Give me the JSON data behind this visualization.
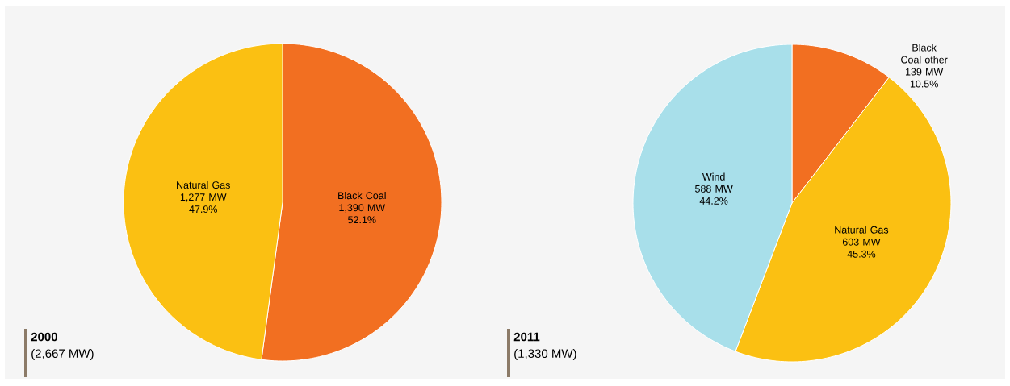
{
  "chart_data": [
    {
      "type": "pie",
      "title": "2000",
      "subtitle": "(2,667 MW)",
      "categories": [
        "Black Coal",
        "Natural Gas"
      ],
      "values": [
        1390,
        1277
      ],
      "colors": [
        "#f26f21",
        "#fbc012"
      ],
      "value_labels": [
        "1,390 MW",
        "1,277 MW"
      ],
      "annotations": [
        "52.1%",
        "47.9%"
      ]
    },
    {
      "type": "pie",
      "title": "2011",
      "subtitle": "(1,330 MW)",
      "categories": [
        "Black Coal other",
        "Natural Gas",
        "Wind"
      ],
      "values": [
        139,
        603,
        588
      ],
      "colors": [
        "#f26f21",
        "#fbc012",
        "#a8dfea"
      ],
      "value_labels": [
        "139 MW",
        "603 MW",
        "588 MW"
      ],
      "annotations": [
        "10.5%",
        "45.3%",
        "44.2%"
      ]
    }
  ]
}
